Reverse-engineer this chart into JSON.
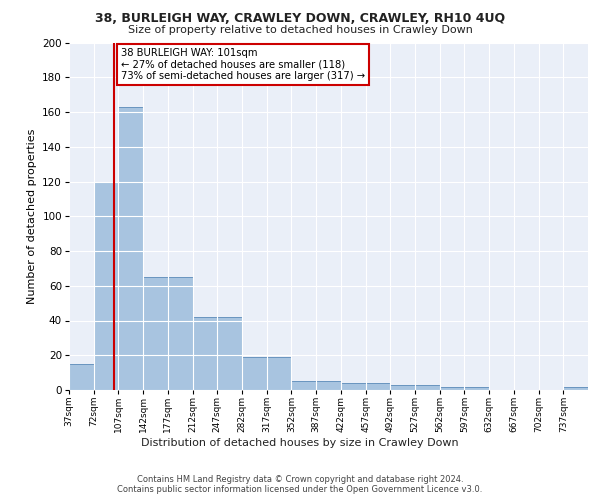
{
  "title1": "38, BURLEIGH WAY, CRAWLEY DOWN, CRAWLEY, RH10 4UQ",
  "title2": "Size of property relative to detached houses in Crawley Down",
  "xlabel": "Distribution of detached houses by size in Crawley Down",
  "ylabel": "Number of detached properties",
  "bin_labels": [
    "37sqm",
    "72sqm",
    "107sqm",
    "142sqm",
    "177sqm",
    "212sqm",
    "247sqm",
    "282sqm",
    "317sqm",
    "352sqm",
    "387sqm",
    "422sqm",
    "457sqm",
    "492sqm",
    "527sqm",
    "562sqm",
    "597sqm",
    "632sqm",
    "667sqm",
    "702sqm",
    "737sqm"
  ],
  "bar_values": [
    15,
    120,
    163,
    65,
    65,
    42,
    42,
    19,
    19,
    5,
    5,
    4,
    4,
    3,
    3,
    2,
    2,
    0,
    0,
    0,
    2
  ],
  "bar_color": "#a8c4e0",
  "bar_edge_color": "#5a8ab8",
  "bg_color": "#eaeff8",
  "grid_color": "#ffffff",
  "red_line_x": 101,
  "annotation_text": "38 BURLEIGH WAY: 101sqm\n← 27% of detached houses are smaller (118)\n73% of semi-detached houses are larger (317) →",
  "annotation_box_color": "#ffffff",
  "annotation_border_color": "#cc0000",
  "footer_text": "Contains HM Land Registry data © Crown copyright and database right 2024.\nContains public sector information licensed under the Open Government Licence v3.0.",
  "ylim": [
    0,
    200
  ],
  "yticks": [
    0,
    20,
    40,
    60,
    80,
    100,
    120,
    140,
    160,
    180,
    200
  ],
  "bin_edges": [
    37,
    72,
    107,
    142,
    177,
    212,
    247,
    282,
    317,
    352,
    387,
    422,
    457,
    492,
    527,
    562,
    597,
    632,
    667,
    702,
    737,
    772
  ]
}
